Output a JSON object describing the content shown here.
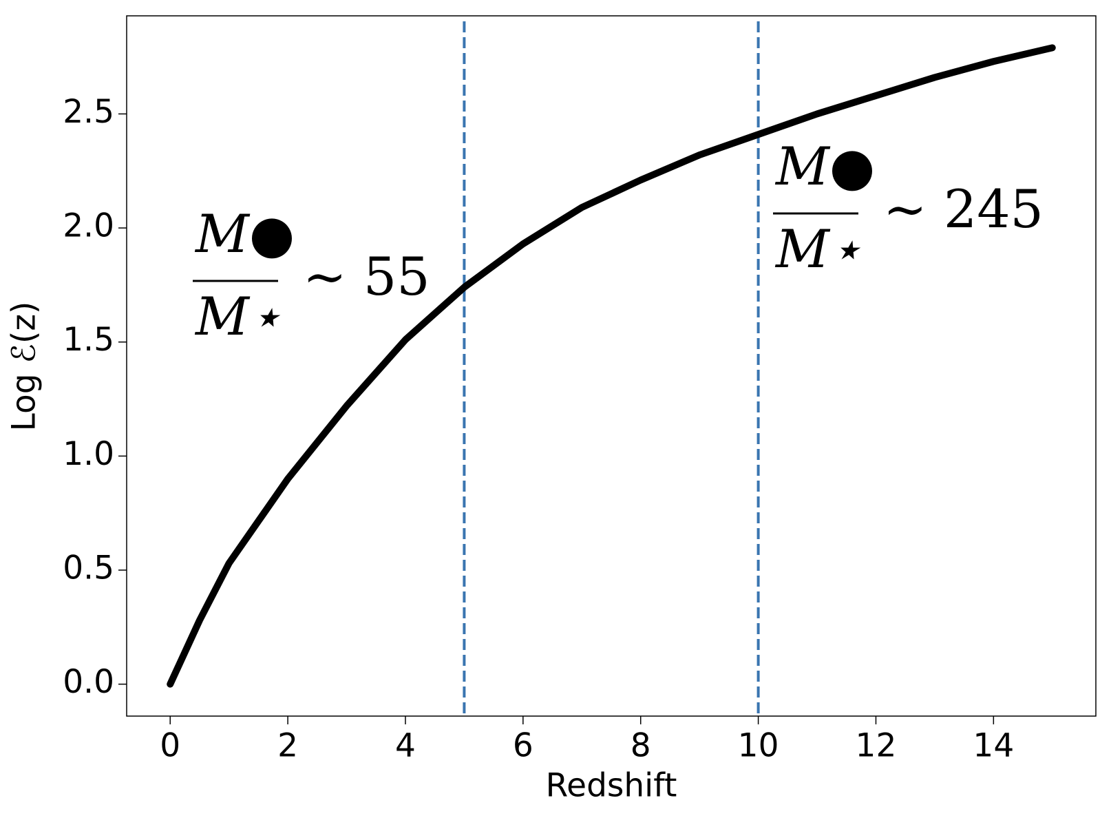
{
  "chart_data": {
    "type": "line",
    "xlabel": "Redshift",
    "ylabel": "Log ℰ(z)",
    "x": [
      0,
      0.5,
      1,
      2,
      3,
      4,
      5,
      6,
      7,
      8,
      9,
      10,
      11,
      12,
      13,
      14,
      15
    ],
    "series": [
      {
        "color": "#000000",
        "values": [
          0,
          0.28,
          0.53,
          0.9,
          1.22,
          1.51,
          1.74,
          1.93,
          2.09,
          2.21,
          2.32,
          2.41,
          2.5,
          2.58,
          2.66,
          2.73,
          2.79
        ]
      }
    ],
    "vlines": {
      "color": "#3a75b0",
      "values": [
        5,
        10
      ]
    },
    "annotations": [
      {
        "numerator": "M●",
        "denominator": "M⋆",
        "relation": "∼ 55"
      },
      {
        "numerator": "M●",
        "denominator": "M⋆",
        "relation": "∼ 245"
      }
    ],
    "xlim": [
      -0.74,
      15.74
    ],
    "ylim": [
      -0.14,
      2.93
    ],
    "xticks": [
      0,
      2,
      4,
      6,
      8,
      10,
      12,
      14
    ],
    "yticks": [
      {
        "value": 0,
        "label": "0.0"
      },
      0.5,
      {
        "value": 1,
        "label": "1.0"
      },
      1.5,
      {
        "value": 2,
        "label": "2.0"
      },
      2.5
    ]
  }
}
